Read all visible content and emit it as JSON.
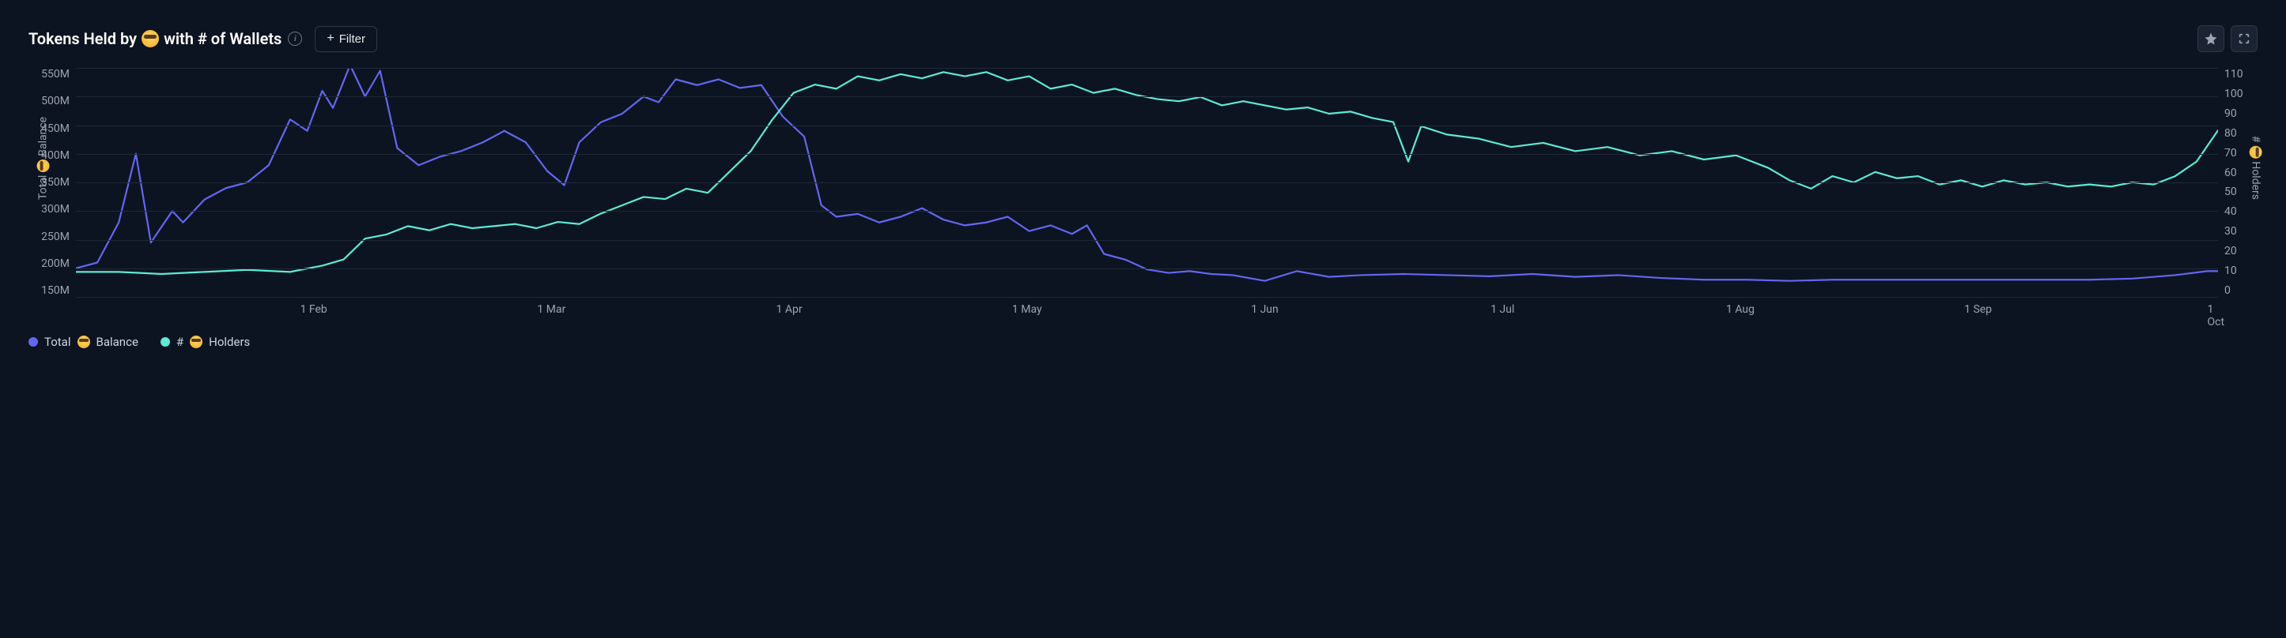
{
  "header": {
    "title_prefix": "Tokens Held by",
    "title_suffix": "with # of Wallets",
    "filter_label": "Filter"
  },
  "chart": {
    "type": "line",
    "background_color": "#0d1421",
    "grid_color": "#1e2936",
    "text_color": "#9ca3af",
    "y_left": {
      "label_prefix": "Total",
      "label_suffix": "Balance",
      "min": 150,
      "max": 550,
      "ticks": [
        "550M",
        "500M",
        "450M",
        "400M",
        "350M",
        "300M",
        "250M",
        "200M",
        "150M"
      ]
    },
    "y_right": {
      "label_prefix": "#",
      "label_suffix": "Holders",
      "min": 0,
      "max": 110,
      "ticks": [
        "110",
        "100",
        "90",
        "80",
        "70",
        "60",
        "50",
        "40",
        "30",
        "20",
        "10",
        "0"
      ]
    },
    "x_ticks": [
      {
        "label": "1 Feb",
        "pos": 0.111
      },
      {
        "label": "1 Mar",
        "pos": 0.222
      },
      {
        "label": "1 Apr",
        "pos": 0.333
      },
      {
        "label": "1 May",
        "pos": 0.444
      },
      {
        "label": "1 Jun",
        "pos": 0.555
      },
      {
        "label": "1 Jul",
        "pos": 0.666
      },
      {
        "label": "1 Aug",
        "pos": 0.777
      },
      {
        "label": "1 Sep",
        "pos": 0.888
      },
      {
        "label": "1 Oct",
        "pos": 0.999
      }
    ],
    "series": [
      {
        "name": "Total Balance",
        "color": "#6366f1",
        "line_width": 2.2,
        "axis": "left",
        "data": [
          [
            0.0,
            200
          ],
          [
            0.01,
            210
          ],
          [
            0.02,
            280
          ],
          [
            0.028,
            400
          ],
          [
            0.035,
            245
          ],
          [
            0.045,
            300
          ],
          [
            0.05,
            280
          ],
          [
            0.06,
            320
          ],
          [
            0.07,
            340
          ],
          [
            0.08,
            350
          ],
          [
            0.09,
            380
          ],
          [
            0.1,
            460
          ],
          [
            0.108,
            440
          ],
          [
            0.115,
            510
          ],
          [
            0.12,
            480
          ],
          [
            0.128,
            555
          ],
          [
            0.135,
            500
          ],
          [
            0.142,
            545
          ],
          [
            0.15,
            410
          ],
          [
            0.16,
            380
          ],
          [
            0.17,
            395
          ],
          [
            0.18,
            405
          ],
          [
            0.19,
            420
          ],
          [
            0.2,
            440
          ],
          [
            0.21,
            420
          ],
          [
            0.22,
            370
          ],
          [
            0.228,
            345
          ],
          [
            0.235,
            420
          ],
          [
            0.245,
            455
          ],
          [
            0.255,
            470
          ],
          [
            0.265,
            500
          ],
          [
            0.272,
            490
          ],
          [
            0.28,
            530
          ],
          [
            0.29,
            520
          ],
          [
            0.3,
            530
          ],
          [
            0.31,
            515
          ],
          [
            0.32,
            520
          ],
          [
            0.33,
            465
          ],
          [
            0.34,
            430
          ],
          [
            0.348,
            310
          ],
          [
            0.355,
            290
          ],
          [
            0.365,
            295
          ],
          [
            0.375,
            280
          ],
          [
            0.385,
            290
          ],
          [
            0.395,
            305
          ],
          [
            0.405,
            285
          ],
          [
            0.415,
            275
          ],
          [
            0.425,
            280
          ],
          [
            0.435,
            290
          ],
          [
            0.445,
            265
          ],
          [
            0.455,
            275
          ],
          [
            0.465,
            260
          ],
          [
            0.472,
            275
          ],
          [
            0.48,
            225
          ],
          [
            0.49,
            215
          ],
          [
            0.5,
            198
          ],
          [
            0.51,
            192
          ],
          [
            0.52,
            195
          ],
          [
            0.53,
            190
          ],
          [
            0.54,
            188
          ],
          [
            0.555,
            178
          ],
          [
            0.57,
            195
          ],
          [
            0.585,
            185
          ],
          [
            0.6,
            188
          ],
          [
            0.62,
            190
          ],
          [
            0.64,
            188
          ],
          [
            0.66,
            186
          ],
          [
            0.68,
            190
          ],
          [
            0.7,
            185
          ],
          [
            0.72,
            188
          ],
          [
            0.74,
            183
          ],
          [
            0.76,
            180
          ],
          [
            0.78,
            180
          ],
          [
            0.8,
            178
          ],
          [
            0.82,
            180
          ],
          [
            0.84,
            180
          ],
          [
            0.86,
            180
          ],
          [
            0.88,
            180
          ],
          [
            0.9,
            180
          ],
          [
            0.92,
            180
          ],
          [
            0.94,
            180
          ],
          [
            0.96,
            182
          ],
          [
            0.98,
            188
          ],
          [
            0.995,
            195
          ],
          [
            1.0,
            195
          ]
        ]
      },
      {
        "name": "# Holders",
        "color": "#5eead4",
        "line_width": 2.2,
        "axis": "right",
        "data": [
          [
            0.0,
            12
          ],
          [
            0.02,
            12
          ],
          [
            0.04,
            11
          ],
          [
            0.06,
            12
          ],
          [
            0.08,
            13
          ],
          [
            0.1,
            12
          ],
          [
            0.115,
            15
          ],
          [
            0.125,
            18
          ],
          [
            0.135,
            28
          ],
          [
            0.145,
            30
          ],
          [
            0.155,
            34
          ],
          [
            0.165,
            32
          ],
          [
            0.175,
            35
          ],
          [
            0.185,
            33
          ],
          [
            0.195,
            34
          ],
          [
            0.205,
            35
          ],
          [
            0.215,
            33
          ],
          [
            0.225,
            36
          ],
          [
            0.235,
            35
          ],
          [
            0.245,
            40
          ],
          [
            0.255,
            44
          ],
          [
            0.265,
            48
          ],
          [
            0.275,
            47
          ],
          [
            0.285,
            52
          ],
          [
            0.295,
            50
          ],
          [
            0.305,
            60
          ],
          [
            0.315,
            70
          ],
          [
            0.325,
            85
          ],
          [
            0.335,
            98
          ],
          [
            0.345,
            102
          ],
          [
            0.355,
            100
          ],
          [
            0.365,
            106
          ],
          [
            0.375,
            104
          ],
          [
            0.385,
            107
          ],
          [
            0.395,
            105
          ],
          [
            0.405,
            108
          ],
          [
            0.415,
            106
          ],
          [
            0.425,
            108
          ],
          [
            0.435,
            104
          ],
          [
            0.445,
            106
          ],
          [
            0.455,
            100
          ],
          [
            0.465,
            102
          ],
          [
            0.475,
            98
          ],
          [
            0.485,
            100
          ],
          [
            0.495,
            97
          ],
          [
            0.505,
            95
          ],
          [
            0.515,
            94
          ],
          [
            0.525,
            96
          ],
          [
            0.535,
            92
          ],
          [
            0.545,
            94
          ],
          [
            0.555,
            92
          ],
          [
            0.565,
            90
          ],
          [
            0.575,
            91
          ],
          [
            0.585,
            88
          ],
          [
            0.595,
            89
          ],
          [
            0.605,
            86
          ],
          [
            0.615,
            84
          ],
          [
            0.622,
            65
          ],
          [
            0.628,
            82
          ],
          [
            0.64,
            78
          ],
          [
            0.655,
            76
          ],
          [
            0.67,
            72
          ],
          [
            0.685,
            74
          ],
          [
            0.7,
            70
          ],
          [
            0.715,
            72
          ],
          [
            0.73,
            68
          ],
          [
            0.745,
            70
          ],
          [
            0.76,
            66
          ],
          [
            0.775,
            68
          ],
          [
            0.79,
            62
          ],
          [
            0.8,
            56
          ],
          [
            0.81,
            52
          ],
          [
            0.82,
            58
          ],
          [
            0.83,
            55
          ],
          [
            0.84,
            60
          ],
          [
            0.85,
            57
          ],
          [
            0.86,
            58
          ],
          [
            0.87,
            54
          ],
          [
            0.88,
            56
          ],
          [
            0.89,
            53
          ],
          [
            0.9,
            56
          ],
          [
            0.91,
            54
          ],
          [
            0.92,
            55
          ],
          [
            0.93,
            53
          ],
          [
            0.94,
            54
          ],
          [
            0.95,
            53
          ],
          [
            0.96,
            55
          ],
          [
            0.97,
            54
          ],
          [
            0.98,
            58
          ],
          [
            0.99,
            65
          ],
          [
            1.0,
            80
          ]
        ]
      }
    ]
  },
  "legend": {
    "items": [
      {
        "prefix": "Total",
        "suffix": "Balance",
        "color": "#6366f1"
      },
      {
        "prefix": "#",
        "suffix": "Holders",
        "color": "#5eead4"
      }
    ]
  }
}
